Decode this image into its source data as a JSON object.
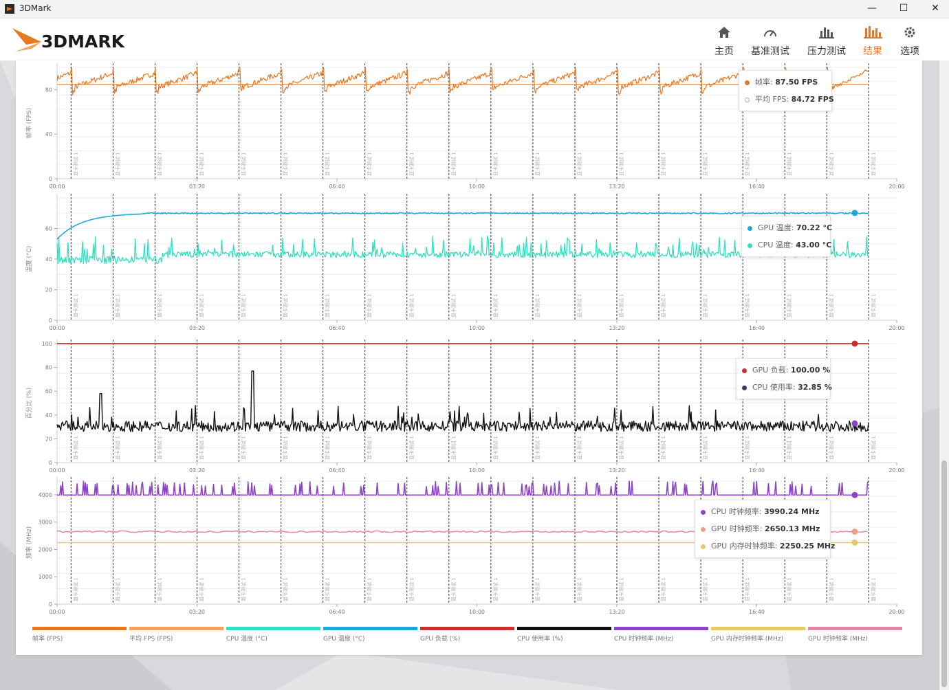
{
  "window": {
    "title": "3DMark",
    "minimize": "—",
    "maximize": "☐",
    "close": "✕"
  },
  "brand": {
    "logo_text": "3DMARK",
    "accent": "#e87722"
  },
  "nav": [
    {
      "label": "主页",
      "icon": "home-icon",
      "active": false
    },
    {
      "label": "基准测试",
      "icon": "gauge-icon",
      "active": false
    },
    {
      "label": "压力测试",
      "icon": "bars-icon",
      "active": false
    },
    {
      "label": "结果",
      "icon": "results-icon",
      "active": true
    },
    {
      "label": "选项",
      "icon": "gear-icon",
      "active": false
    }
  ],
  "x_ticks": [
    "00:00",
    "03:20",
    "06:40",
    "10:00",
    "13:20",
    "16:40",
    "20:00"
  ],
  "marker_label": "显卡测试 1",
  "marker_count": 20,
  "charts": [
    {
      "ylabel": "帧率 (FPS)",
      "yticks": [
        "0",
        "40",
        "80"
      ],
      "tooltip": [
        {
          "label": "帧率",
          "value": "87.50 FPS",
          "color": "#e87722"
        },
        {
          "label": "平均 FPS",
          "value": "84.72 FPS",
          "color": "#f2a25a"
        }
      ]
    },
    {
      "ylabel": "温度 (°C)",
      "yticks": [
        "0",
        "20",
        "40",
        "60"
      ],
      "tooltip": [
        {
          "label": "GPU 温度",
          "value": "70.22 °C",
          "color": "#1fa8db"
        },
        {
          "label": "CPU 温度",
          "value": "43.00 °C",
          "color": "#2de2c0"
        }
      ]
    },
    {
      "ylabel": "百分比 (%)",
      "yticks": [
        "0",
        "20",
        "40",
        "60",
        "80",
        "100"
      ],
      "tooltip": [
        {
          "label": "GPU 负载",
          "value": "100.00 %",
          "color": "#c9302c"
        },
        {
          "label": "CPU 使用率",
          "value": "32.85 %",
          "color": "#4a2f7a"
        }
      ]
    },
    {
      "ylabel": "频率 (MHz)",
      "yticks": [
        "0",
        "1000",
        "2000",
        "3000",
        "4000"
      ],
      "tooltip": [
        {
          "label": "CPU 时钟频率",
          "value": "3990.24 MHz",
          "color": "#8e44c9"
        },
        {
          "label": "GPU 时钟频率",
          "value": "2650.13 MHz",
          "color": "#e8a08a"
        },
        {
          "label": "GPU 内存时钟频率",
          "value": "2250.25 MHz",
          "color": "#e6c96a"
        }
      ]
    }
  ],
  "chart_data": [
    {
      "type": "line",
      "ylabel": "帧率 (FPS)",
      "ylim": [
        0,
        100
      ],
      "xlim_seconds": [
        0,
        1200
      ],
      "series": [
        {
          "name": "帧率 (FPS)",
          "color": "#e87722",
          "typical": 85,
          "min": 72,
          "max": 100,
          "final": 87.5
        },
        {
          "name": "平均 FPS (FPS)",
          "color": "#f2a25a",
          "values": [
            84.72
          ]
        }
      ]
    },
    {
      "type": "line",
      "ylabel": "温度 (°C)",
      "ylim": [
        0,
        80
      ],
      "series": [
        {
          "name": "GPU 温度 (°C)",
          "color": "#1fa8db",
          "start": 53,
          "plateau": 70,
          "final": 70.22
        },
        {
          "name": "CPU 温度 (°C)",
          "color": "#2de2c0",
          "typical": 43,
          "min": 36,
          "max": 55,
          "final": 43.0
        }
      ]
    },
    {
      "type": "line",
      "ylabel": "百分比 (%)",
      "ylim": [
        0,
        100
      ],
      "series": [
        {
          "name": "GPU 负载 (%)",
          "color": "#c9302c",
          "values": [
            100
          ]
        },
        {
          "name": "CPU 使用率 (%)",
          "color": "#111111",
          "typical": 30,
          "min": 20,
          "max": 77,
          "final": 32.85
        }
      ]
    },
    {
      "type": "line",
      "ylabel": "频率 (MHz)",
      "ylim": [
        0,
        4500
      ],
      "series": [
        {
          "name": "CPU 时钟频率 (MHz)",
          "color": "#8e44c9",
          "base": 3990,
          "peak": 4500,
          "final": 3990.24
        },
        {
          "name": "GPU 时钟频率 (MHz)",
          "color": "#e48aa8",
          "values": [
            2650.13
          ]
        },
        {
          "name": "GPU 内存时钟频率 (MHz)",
          "color": "#e6c96a",
          "values": [
            2250.25
          ]
        }
      ]
    }
  ],
  "legend": [
    {
      "label": "帧率 (FPS)",
      "color": "#e87722"
    },
    {
      "label": "平均 FPS (FPS)",
      "color": "#f2a25a"
    },
    {
      "label": "CPU 温度 (°C)",
      "color": "#2de2c0"
    },
    {
      "label": "GPU 温度 (°C)",
      "color": "#1fa8db"
    },
    {
      "label": "GPU 负载 (%)",
      "color": "#c9302c"
    },
    {
      "label": "CPU 使用率 (%)",
      "color": "#111111"
    },
    {
      "label": "CPU 时钟频率 (MHz)",
      "color": "#8e44c9"
    },
    {
      "label": "GPU 内存时钟频率 (MHz)",
      "color": "#e6c96a"
    },
    {
      "label": "GPU 时钟频率 (MHz)",
      "color": "#e48aa8"
    }
  ]
}
